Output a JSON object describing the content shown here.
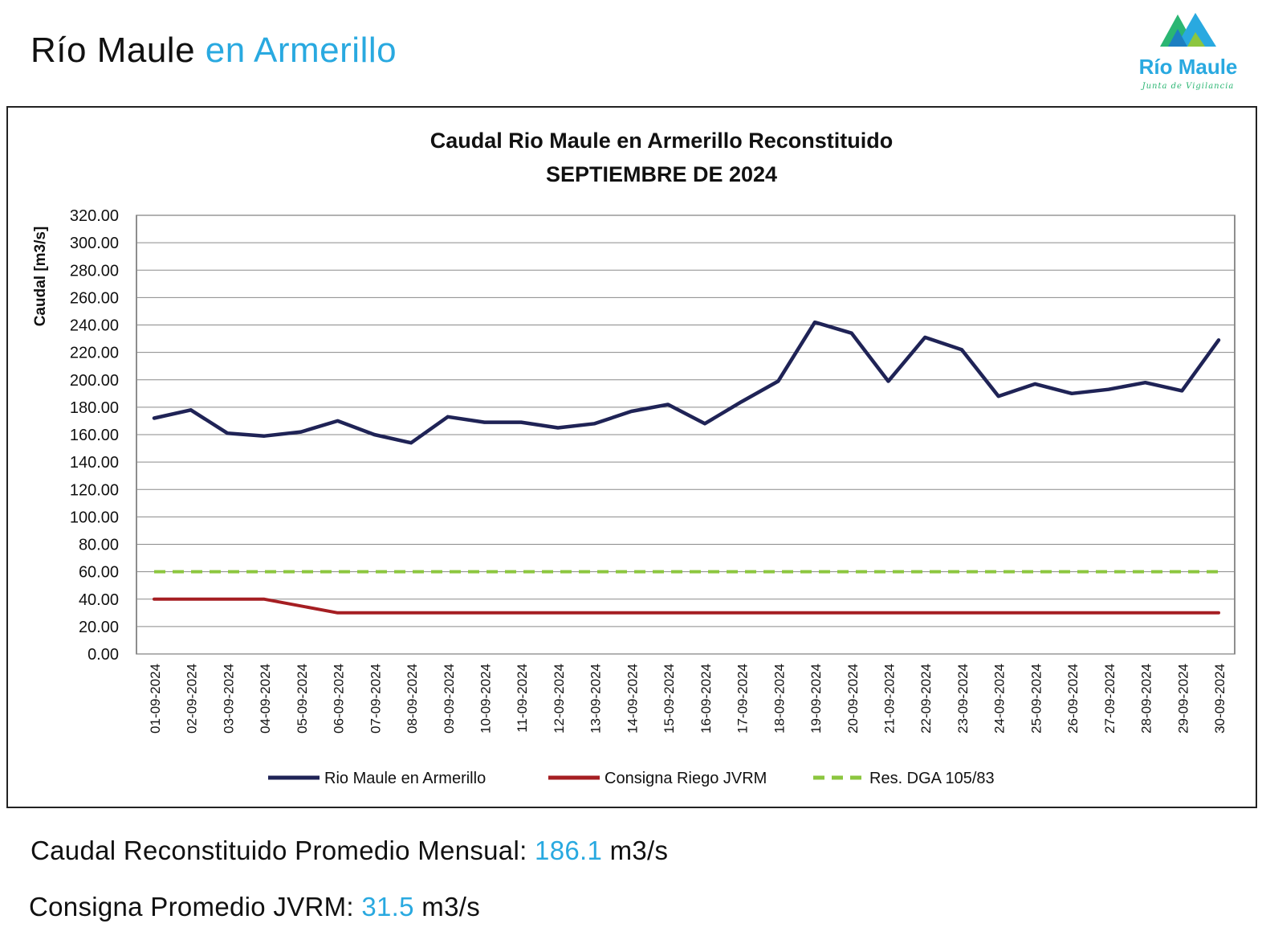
{
  "header": {
    "title_main": "Río Maule",
    "title_accent": "en Armerillo"
  },
  "logo": {
    "name": "Río Maule",
    "tagline": "Junta de Vigilancia"
  },
  "chart_data": {
    "type": "line",
    "title": "Caudal Rio Maule en Armerillo Reconstituido",
    "subtitle": "SEPTIEMBRE DE 2024",
    "xlabel": "",
    "ylabel": "Caudal [m3/s]",
    "ylim": [
      0,
      320
    ],
    "ystep": 20,
    "yticks": [
      "0.00",
      "20.00",
      "40.00",
      "60.00",
      "80.00",
      "100.00",
      "120.00",
      "140.00",
      "160.00",
      "180.00",
      "200.00",
      "220.00",
      "240.00",
      "260.00",
      "280.00",
      "300.00",
      "320.00"
    ],
    "grid": true,
    "legend_position": "bottom",
    "categories": [
      "01-09-2024",
      "02-09-2024",
      "03-09-2024",
      "04-09-2024",
      "05-09-2024",
      "06-09-2024",
      "07-09-2024",
      "08-09-2024",
      "09-09-2024",
      "10-09-2024",
      "11-09-2024",
      "12-09-2024",
      "13-09-2024",
      "14-09-2024",
      "15-09-2024",
      "16-09-2024",
      "17-09-2024",
      "18-09-2024",
      "19-09-2024",
      "20-09-2024",
      "21-09-2024",
      "22-09-2024",
      "23-09-2024",
      "24-09-2024",
      "25-09-2024",
      "26-09-2024",
      "27-09-2024",
      "28-09-2024",
      "29-09-2024",
      "30-09-2024"
    ],
    "series": [
      {
        "name": "Rio Maule en Armerillo",
        "color": "#1f2356",
        "dash": false,
        "values": [
          172,
          178,
          161,
          159,
          162,
          170,
          160,
          154,
          173,
          169,
          169,
          165,
          168,
          177,
          182,
          168,
          184,
          199,
          242,
          234,
          199,
          231,
          222,
          188,
          197,
          190,
          193,
          198,
          192,
          229
        ]
      },
      {
        "name": "Consigna Riego JVRM",
        "color": "#a51e22",
        "dash": false,
        "values": [
          40,
          40,
          40,
          40,
          35,
          30,
          30,
          30,
          30,
          30,
          30,
          30,
          30,
          30,
          30,
          30,
          30,
          30,
          30,
          30,
          30,
          30,
          30,
          30,
          30,
          30,
          30,
          30,
          30,
          30
        ]
      },
      {
        "name": "Res. DGA 105/83",
        "color": "#8cc63f",
        "dash": true,
        "values": [
          60,
          60,
          60,
          60,
          60,
          60,
          60,
          60,
          60,
          60,
          60,
          60,
          60,
          60,
          60,
          60,
          60,
          60,
          60,
          60,
          60,
          60,
          60,
          60,
          60,
          60,
          60,
          60,
          60,
          60
        ]
      }
    ]
  },
  "summary": {
    "avg_label": "Caudal Reconstituido Promedio Mensual:",
    "avg_value": "186.1",
    "avg_unit": "m3/s",
    "consigna_label": "Consigna Promedio JVRM:",
    "consigna_value": "31.5",
    "consigna_unit": "m3/s"
  }
}
